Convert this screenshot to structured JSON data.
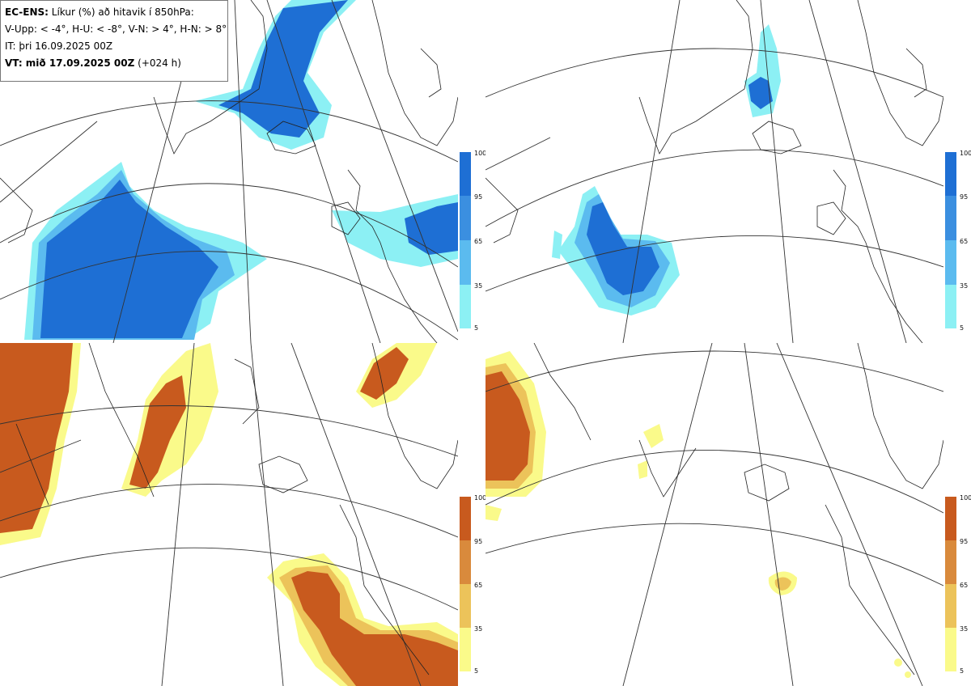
{
  "info": {
    "line1_bold": "EC-ENS:",
    "line1_rest": "Líkur (%) að hitavik í 850hPa:",
    "line2": "V-Upp: < -4°, H-U: < -8°, V-N: > 4°, H-N: > 8°",
    "line3": "IT: þri 16.09.2025 00Z",
    "line4_bold": "VT: mið 17.09.2025 00Z",
    "line4_rest": "(+024 h)"
  },
  "panels": [
    {
      "key": "tl",
      "scheme": "blue"
    },
    {
      "key": "tr",
      "scheme": "blue"
    },
    {
      "key": "bl",
      "scheme": "orange"
    },
    {
      "key": "br",
      "scheme": "orange"
    }
  ],
  "colorbar": {
    "labels": [
      "100",
      "95",
      "65",
      "35",
      "5"
    ],
    "blue": [
      "#1e6fd4",
      "#3b8fe0",
      "#5bbbef",
      "#8cf0f4"
    ],
    "orange": [
      "#c85a1e",
      "#d98a3c",
      "#ecc35a",
      "#fafa8a"
    ]
  }
}
